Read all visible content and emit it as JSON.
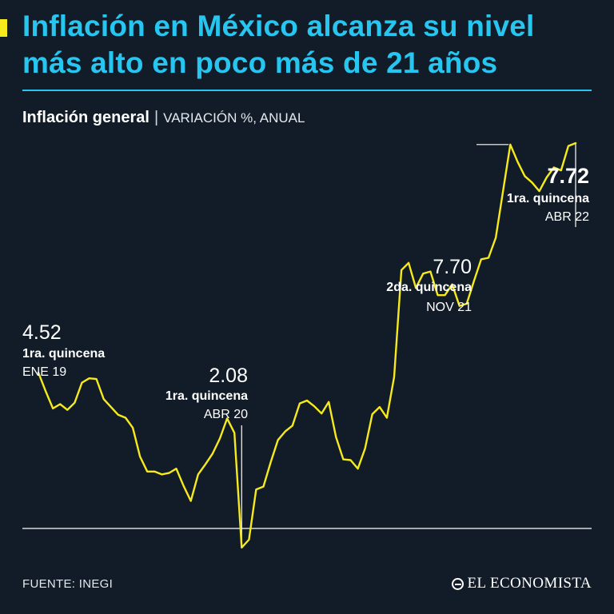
{
  "header": {
    "title_line1": "Inflación en México alcanza su nivel",
    "title_line2": "más alto en poco más de 21 años",
    "subtitle_main": "Inflación general",
    "subtitle_sep": "|",
    "subtitle_unit": "VARIACIÓN %, ANUAL"
  },
  "footer": {
    "source": "FUENTE: INEGI",
    "logo_text": "EL ECONOMISTA"
  },
  "colors": {
    "background": "#111c28",
    "title": "#27c6f0",
    "accent": "#f6ea1d",
    "line": "#f6ea1d",
    "text": "#ffffff"
  },
  "chart_data": {
    "type": "line",
    "title": "Inflación general",
    "unit": "VARIACIÓN %, ANUAL",
    "ylim": [
      1.8,
      8.4
    ],
    "grid": false,
    "series": [
      {
        "values": [
          4.52,
          4.26,
          4.02,
          4.08,
          4.0,
          4.1,
          4.38,
          4.44,
          4.43,
          4.15,
          4.04,
          3.93,
          3.89,
          3.75,
          3.35,
          3.14,
          3.14,
          3.1,
          3.12,
          3.18,
          2.94,
          2.73,
          3.1,
          3.24,
          3.39,
          3.6,
          3.88,
          3.68,
          2.08,
          2.19,
          2.89,
          2.93,
          3.27,
          3.58,
          3.7,
          3.78,
          4.09,
          4.13,
          4.05,
          3.95,
          4.11,
          3.62,
          3.31,
          3.3,
          3.18,
          3.46,
          3.94,
          4.04,
          3.89,
          4.46,
          5.95,
          6.05,
          5.7,
          5.9,
          5.93,
          5.6,
          5.6,
          5.75,
          5.45,
          5.48,
          5.8,
          6.1,
          6.12,
          6.4,
          7.05,
          7.7,
          7.46,
          7.26,
          7.17,
          7.05,
          7.24,
          7.38,
          7.34,
          7.68,
          7.72
        ]
      }
    ],
    "annotations": [
      {
        "value": "4.52",
        "period": "1ra. quincena",
        "date": "ENE 19",
        "index": 0
      },
      {
        "value": "2.08",
        "period": "1ra. quincena",
        "date": "ABR 20",
        "index": 28
      },
      {
        "value": "7.70",
        "period": "2da. quincena",
        "date": "NOV 21",
        "index": 65
      },
      {
        "value": "7.72",
        "period": "1ra. quincena",
        "date": "ABR 22",
        "index": 74
      }
    ]
  }
}
